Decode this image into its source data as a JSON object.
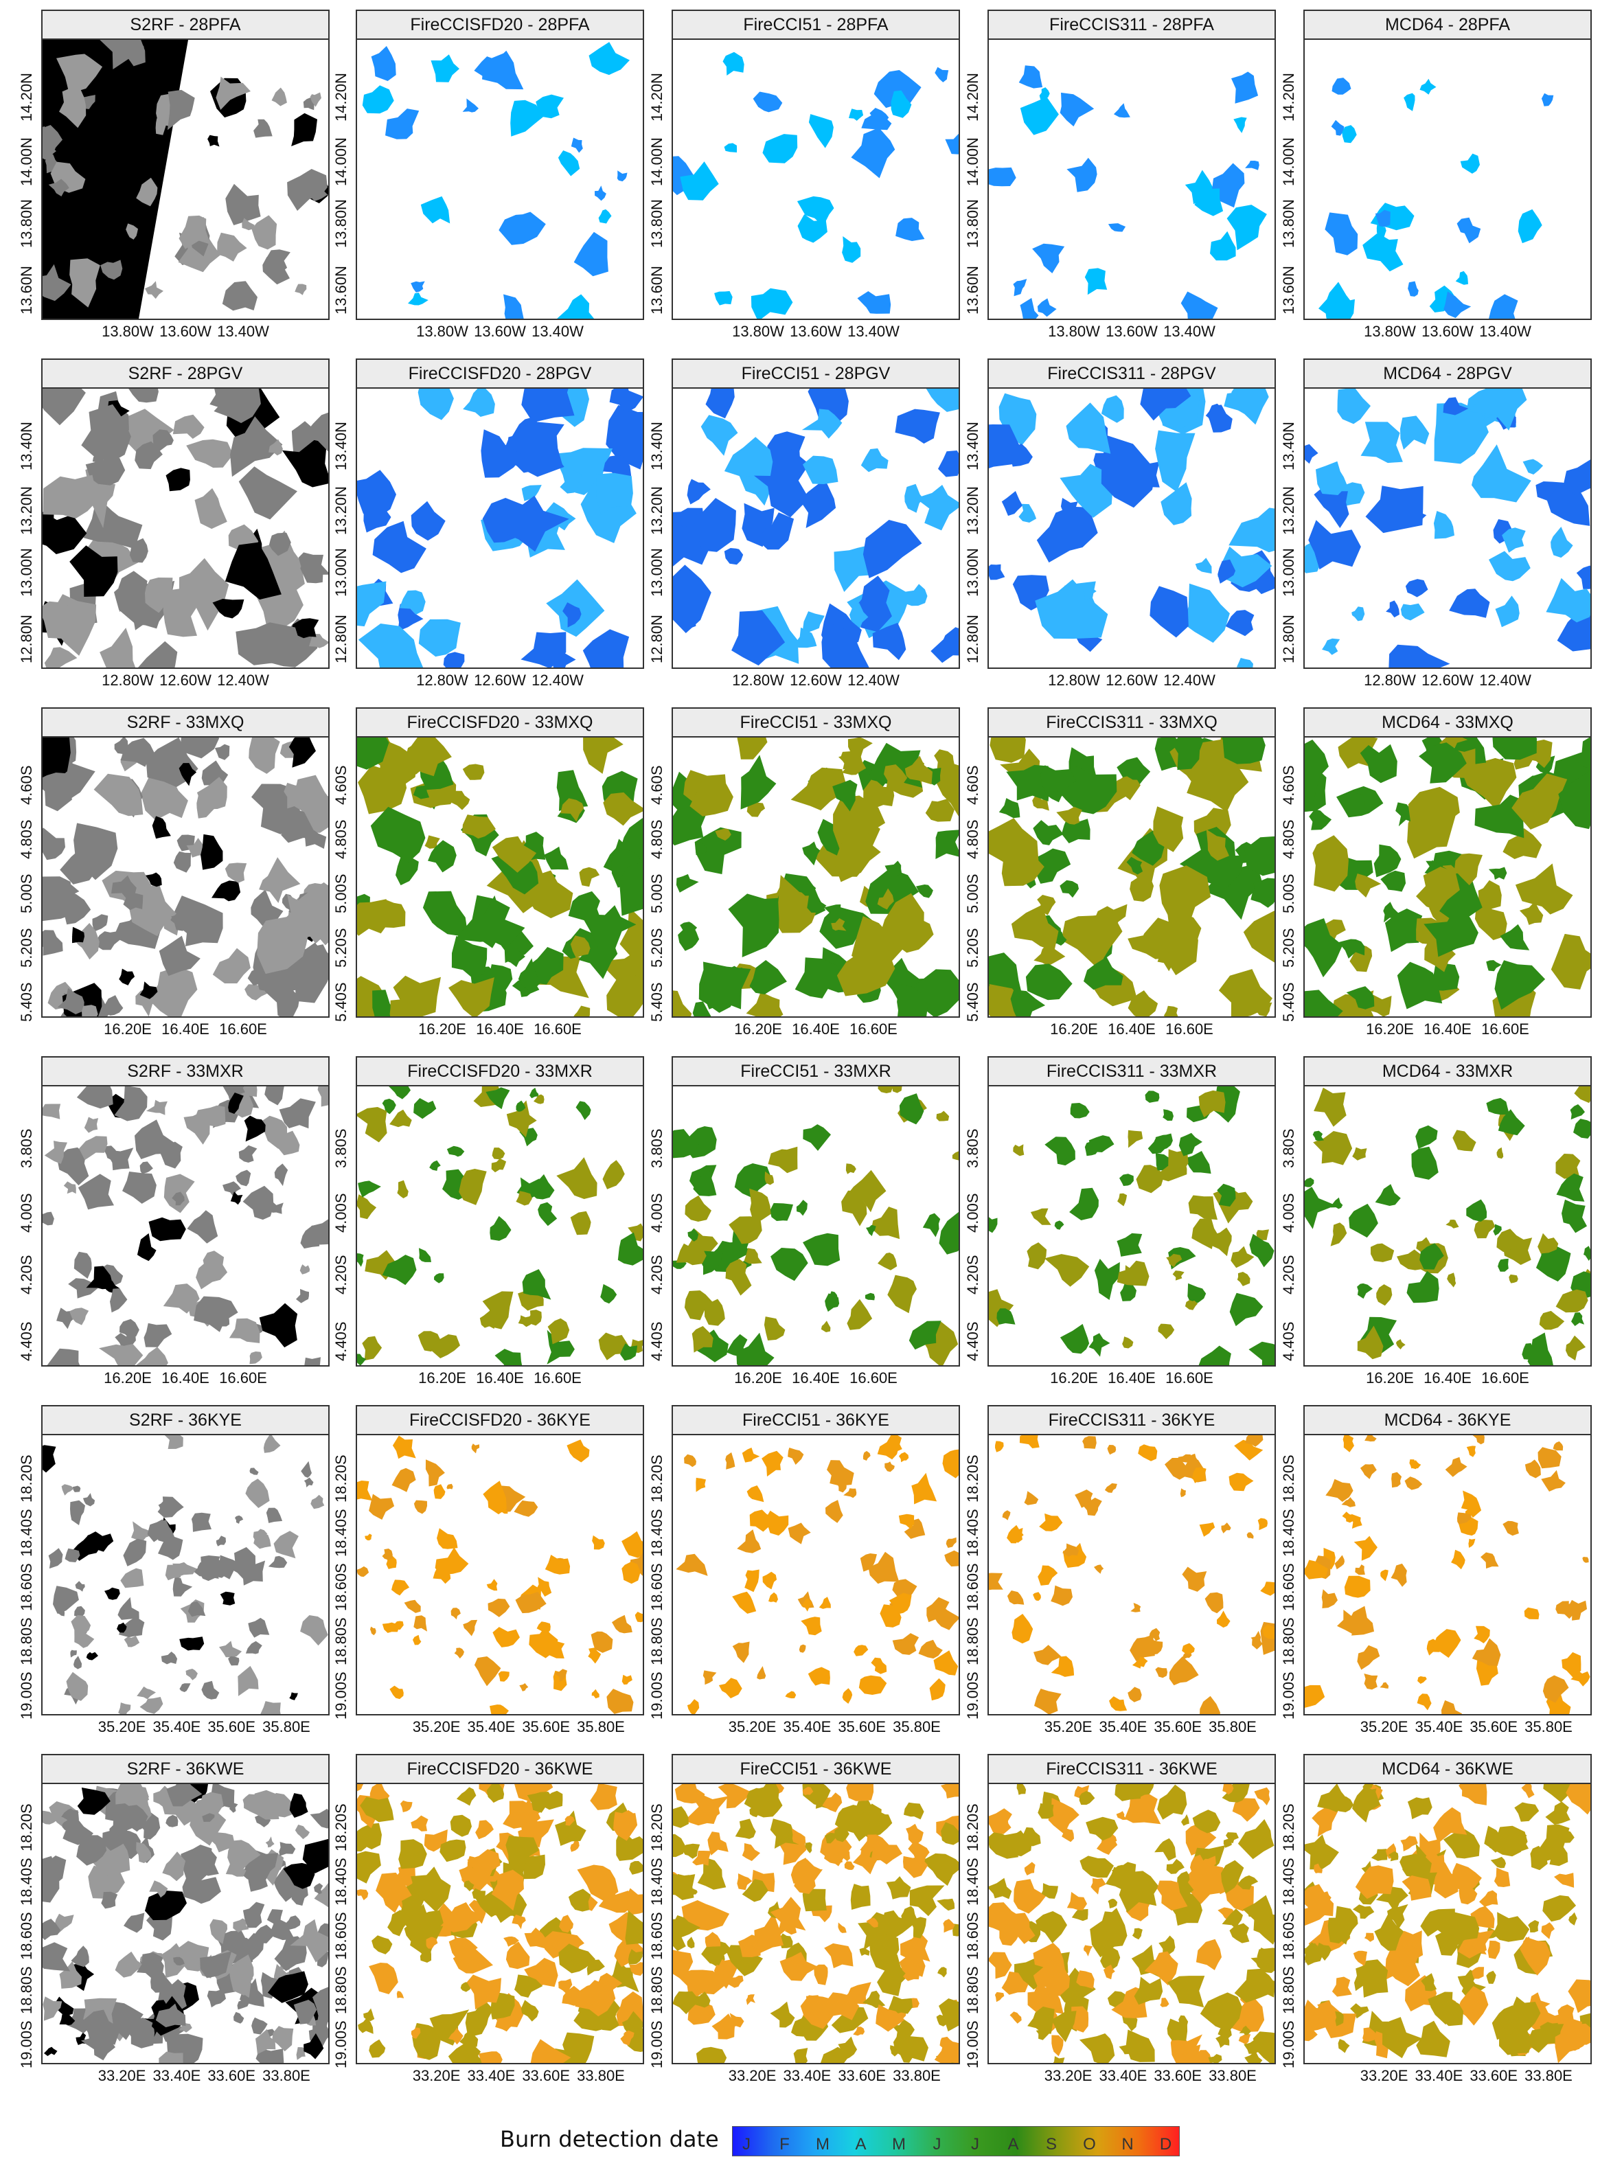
{
  "panels": [
    {
      "title": "S2RF - 28PFA",
      "products_row": 0,
      "kind": "s2rf",
      "y_ticks": [
        "14.20N",
        "14.00N",
        "13.80N",
        "13.60N"
      ],
      "x_ticks": [
        "13.80W",
        "13.60W",
        "13.40W"
      ]
    },
    {
      "title": "FireCCISFD20 - 28PFA",
      "kind": "product",
      "y_ticks": [
        "14.20N",
        "14.00N",
        "13.80N",
        "13.60N"
      ],
      "x_ticks": [
        "13.80W",
        "13.60W",
        "13.40W"
      ]
    },
    {
      "title": "FireCCI51 - 28PFA",
      "kind": "product",
      "y_ticks": [
        "14.20N",
        "14.00N",
        "13.80N",
        "13.60N"
      ],
      "x_ticks": [
        "13.80W",
        "13.60W",
        "13.40W"
      ]
    },
    {
      "title": "FireCCIS311 - 28PFA",
      "kind": "product",
      "y_ticks": [
        "14.20N",
        "14.00N",
        "13.80N",
        "13.60N"
      ],
      "x_ticks": [
        "13.80W",
        "13.60W",
        "13.40W"
      ]
    },
    {
      "title": "MCD64 - 28PFA",
      "kind": "product",
      "y_ticks": [
        "14.20N",
        "14.00N",
        "13.80N",
        "13.60N"
      ],
      "x_ticks": [
        "13.80W",
        "13.60W",
        "13.40W"
      ]
    },
    {
      "title": "S2RF - 28PGV",
      "kind": "s2rf",
      "y_ticks": [
        "13.40N",
        "13.20N",
        "13.00N",
        "12.80N"
      ],
      "x_ticks": [
        "12.80W",
        "12.60W",
        "12.40W"
      ]
    },
    {
      "title": "FireCCISFD20 - 28PGV",
      "kind": "product",
      "y_ticks": [
        "13.40N",
        "13.20N",
        "13.00N",
        "12.80N"
      ],
      "x_ticks": [
        "12.80W",
        "12.60W",
        "12.40W"
      ]
    },
    {
      "title": "FireCCI51 - 28PGV",
      "kind": "product",
      "y_ticks": [
        "13.40N",
        "13.20N",
        "13.00N",
        "12.80N"
      ],
      "x_ticks": [
        "12.80W",
        "12.60W",
        "12.40W"
      ]
    },
    {
      "title": "FireCCIS311 - 28PGV",
      "kind": "product",
      "y_ticks": [
        "13.40N",
        "13.20N",
        "13.00N",
        "12.80N"
      ],
      "x_ticks": [
        "12.80W",
        "12.60W",
        "12.40W"
      ]
    },
    {
      "title": "MCD64 - 28PGV",
      "kind": "product",
      "y_ticks": [
        "13.40N",
        "13.20N",
        "13.00N",
        "12.80N"
      ],
      "x_ticks": [
        "12.80W",
        "12.60W",
        "12.40W"
      ]
    },
    {
      "title": "S2RF - 33MXQ",
      "kind": "s2rf",
      "y_ticks": [
        "4.60S",
        "4.80S",
        "5.00S",
        "5.20S",
        "5.40S"
      ],
      "x_ticks": [
        "16.20E",
        "16.40E",
        "16.60E"
      ]
    },
    {
      "title": "FireCCISFD20 - 33MXQ",
      "kind": "product",
      "y_ticks": [
        "4.60S",
        "4.80S",
        "5.00S",
        "5.20S",
        "5.40S"
      ],
      "x_ticks": [
        "16.20E",
        "16.40E",
        "16.60E"
      ]
    },
    {
      "title": "FireCCI51 - 33MXQ",
      "kind": "product",
      "y_ticks": [
        "4.60S",
        "4.80S",
        "5.00S",
        "5.20S",
        "5.40S"
      ],
      "x_ticks": [
        "16.20E",
        "16.40E",
        "16.60E"
      ]
    },
    {
      "title": "FireCCIS311 - 33MXQ",
      "kind": "product",
      "y_ticks": [
        "4.60S",
        "4.80S",
        "5.00S",
        "5.20S",
        "5.40S"
      ],
      "x_ticks": [
        "16.20E",
        "16.40E",
        "16.60E"
      ]
    },
    {
      "title": "MCD64 - 33MXQ",
      "kind": "product",
      "y_ticks": [
        "4.60S",
        "4.80S",
        "5.00S",
        "5.20S",
        "5.40S"
      ],
      "x_ticks": [
        "16.20E",
        "16.40E",
        "16.60E"
      ]
    },
    {
      "title": "S2RF - 33MXR",
      "kind": "s2rf",
      "y_ticks": [
        "3.80S",
        "4.00S",
        "4.20S",
        "4.40S"
      ],
      "x_ticks": [
        "16.20E",
        "16.40E",
        "16.60E"
      ]
    },
    {
      "title": "FireCCISFD20 - 33MXR",
      "kind": "product",
      "y_ticks": [
        "3.80S",
        "4.00S",
        "4.20S",
        "4.40S"
      ],
      "x_ticks": [
        "16.20E",
        "16.40E",
        "16.60E"
      ]
    },
    {
      "title": "FireCCI51 - 33MXR",
      "kind": "product",
      "y_ticks": [
        "3.80S",
        "4.00S",
        "4.20S",
        "4.40S"
      ],
      "x_ticks": [
        "16.20E",
        "16.40E",
        "16.60E"
      ]
    },
    {
      "title": "FireCCIS311 - 33MXR",
      "kind": "product",
      "y_ticks": [
        "3.80S",
        "4.00S",
        "4.20S",
        "4.40S"
      ],
      "x_ticks": [
        "16.20E",
        "16.40E",
        "16.60E"
      ]
    },
    {
      "title": "MCD64 - 33MXR",
      "kind": "product",
      "y_ticks": [
        "3.80S",
        "4.00S",
        "4.20S",
        "4.40S"
      ],
      "x_ticks": [
        "16.20E",
        "16.40E",
        "16.60E"
      ]
    },
    {
      "title": "S2RF - 36KYE",
      "kind": "s2rf",
      "y_ticks": [
        "18.20S",
        "18.40S",
        "18.60S",
        "18.80S",
        "19.00S"
      ],
      "x_ticks": [
        "35.20E",
        "35.40E",
        "35.60E",
        "35.80E"
      ]
    },
    {
      "title": "FireCCISFD20 - 36KYE",
      "kind": "product",
      "y_ticks": [
        "18.20S",
        "18.40S",
        "18.60S",
        "18.80S",
        "19.00S"
      ],
      "x_ticks": [
        "35.20E",
        "35.40E",
        "35.60E",
        "35.80E"
      ]
    },
    {
      "title": "FireCCI51 - 36KYE",
      "kind": "product",
      "y_ticks": [
        "18.20S",
        "18.40S",
        "18.60S",
        "18.80S",
        "19.00S"
      ],
      "x_ticks": [
        "35.20E",
        "35.40E",
        "35.60E",
        "35.80E"
      ]
    },
    {
      "title": "FireCCIS311 - 36KYE",
      "kind": "product",
      "y_ticks": [
        "18.20S",
        "18.40S",
        "18.60S",
        "18.80S",
        "19.00S"
      ],
      "x_ticks": [
        "35.20E",
        "35.40E",
        "35.60E",
        "35.80E"
      ]
    },
    {
      "title": "MCD64 - 36KYE",
      "kind": "product",
      "y_ticks": [
        "18.20S",
        "18.40S",
        "18.60S",
        "18.80S",
        "19.00S"
      ],
      "x_ticks": [
        "35.20E",
        "35.40E",
        "35.60E",
        "35.80E"
      ]
    },
    {
      "title": "S2RF - 36KWE",
      "kind": "s2rf",
      "y_ticks": [
        "18.20S",
        "18.40S",
        "18.60S",
        "18.80S",
        "19.00S"
      ],
      "x_ticks": [
        "33.20E",
        "33.40E",
        "33.60E",
        "33.80E"
      ]
    },
    {
      "title": "FireCCISFD20 - 36KWE",
      "kind": "product",
      "y_ticks": [
        "18.20S",
        "18.40S",
        "18.60S",
        "18.80S",
        "19.00S"
      ],
      "x_ticks": [
        "33.20E",
        "33.40E",
        "33.60E",
        "33.80E"
      ]
    },
    {
      "title": "FireCCI51 - 36KWE",
      "kind": "product",
      "y_ticks": [
        "18.20S",
        "18.40S",
        "18.60S",
        "18.80S",
        "19.00S"
      ],
      "x_ticks": [
        "33.20E",
        "33.40E",
        "33.60E",
        "33.80E"
      ]
    },
    {
      "title": "FireCCIS311 - 36KWE",
      "kind": "product",
      "y_ticks": [
        "18.20S",
        "18.40S",
        "18.60S",
        "18.80S",
        "19.00S"
      ],
      "x_ticks": [
        "33.20E",
        "33.40E",
        "33.60E",
        "33.80E"
      ]
    },
    {
      "title": "MCD64 - 36KWE",
      "kind": "product",
      "y_ticks": [
        "18.20S",
        "18.40S",
        "18.60S",
        "18.80S",
        "19.00S"
      ],
      "x_ticks": [
        "33.20E",
        "33.40E",
        "33.60E",
        "33.80E"
      ]
    }
  ],
  "tile_colors": {
    "28PFA": [
      "#1e90ff",
      "#00bfff"
    ],
    "28PGV": [
      "#1e6cf0",
      "#33b5ff"
    ],
    "33MXQ": [
      "#2e8b17",
      "#9a9a10"
    ],
    "33MXR": [
      "#2e8b17",
      "#9a9a10"
    ],
    "36KYE": [
      "#f5a10a",
      "#e89a1a"
    ],
    "36KWE": [
      "#b8a010",
      "#f0a020"
    ]
  },
  "s2rf_colors": {
    "burned": "#808080",
    "unburned": "#ffffff",
    "nodata": "#000000"
  },
  "legend": {
    "title": "Burn detection date",
    "months": [
      "J",
      "F",
      "M",
      "A",
      "M",
      "J",
      "J",
      "A",
      "S",
      "O",
      "N",
      "D"
    ],
    "colors": [
      "#1a1aff",
      "#1e6cf0",
      "#1ea5f5",
      "#17d0e0",
      "#1fc8a0",
      "#30b050",
      "#3a9a20",
      "#2e8b17",
      "#8a9a10",
      "#d8a010",
      "#f07010",
      "#ff2020"
    ]
  }
}
